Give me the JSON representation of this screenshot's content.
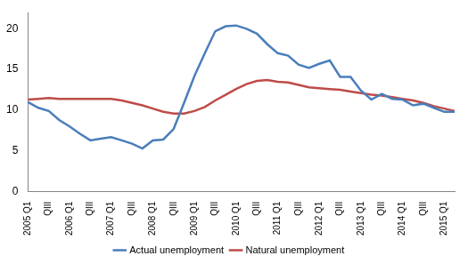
{
  "chart_data": {
    "type": "line",
    "categories": [
      "2005 Q1",
      null,
      "QIII",
      null,
      "2006 Q1",
      null,
      "QIII",
      null,
      "2007 Q1",
      null,
      "QIII",
      null,
      "2008 Q1",
      null,
      "QIII",
      null,
      "2009 Q1",
      null,
      "QIII",
      null,
      "2010 Q1",
      null,
      "QIII",
      null,
      "2011 Q1",
      null,
      "QIII",
      null,
      "2012 Q1",
      null,
      "QIII",
      null,
      "2013 Q1",
      null,
      "QIII",
      null,
      "2014 Q1",
      null,
      "QIII",
      null,
      "2015 Q1",
      null
    ],
    "series": [
      {
        "name": "Actual unemployment",
        "color": "#4a7ebb",
        "values": [
          11.0,
          10.3,
          9.9,
          8.8,
          8.0,
          7.1,
          6.3,
          6.5,
          6.7,
          6.3,
          5.9,
          5.3,
          6.3,
          6.4,
          7.7,
          10.9,
          14.2,
          17.0,
          19.7,
          20.3,
          20.4,
          20.0,
          19.4,
          18.1,
          17.0,
          16.7,
          15.6,
          15.2,
          15.7,
          16.1,
          14.1,
          14.1,
          12.4,
          11.3,
          12.0,
          11.4,
          11.3,
          10.6,
          10.8,
          10.3,
          9.8,
          9.8
        ]
      },
      {
        "name": "Natural unemployment",
        "color": "#be4b48",
        "values": [
          11.3,
          11.4,
          11.5,
          11.4,
          11.4,
          11.4,
          11.4,
          11.4,
          11.4,
          11.2,
          10.9,
          10.6,
          10.2,
          9.8,
          9.6,
          9.6,
          9.9,
          10.4,
          11.2,
          11.9,
          12.6,
          13.2,
          13.6,
          13.7,
          13.5,
          13.4,
          13.1,
          12.8,
          12.7,
          12.6,
          12.5,
          12.3,
          12.1,
          11.9,
          11.8,
          11.6,
          11.4,
          11.2,
          10.9,
          10.5,
          10.2,
          9.9
        ]
      }
    ],
    "ylim": [
      0,
      22
    ],
    "yticks": [
      0,
      5,
      10,
      15,
      20
    ],
    "grid": false,
    "legend": "bottom"
  }
}
